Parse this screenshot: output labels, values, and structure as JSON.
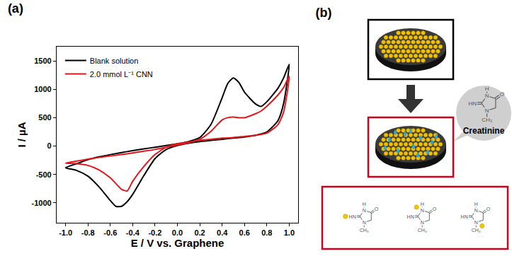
{
  "chart_data": {
    "type": "line",
    "title": "(a)",
    "x_label": "E / V vs. Graphene",
    "y_label": "I / µA",
    "x": [
      -1.0,
      -0.9,
      -0.8,
      -0.7,
      -0.6,
      -0.5,
      -0.4,
      -0.3,
      -0.2,
      -0.1,
      0.0,
      0.1,
      0.2,
      0.3,
      0.4,
      0.45,
      0.5,
      0.55,
      0.6,
      0.7,
      0.75,
      0.8,
      0.9,
      0.95,
      1.0,
      0.95,
      0.9,
      0.8,
      0.7,
      0.6,
      0.5,
      0.4,
      0.3,
      0.2,
      0.1,
      0.0,
      -0.1,
      -0.2,
      -0.3,
      -0.4,
      -0.45,
      -0.5,
      -0.55,
      -0.6,
      -0.7,
      -0.8,
      -0.9,
      -1.0
    ],
    "series": [
      {
        "name": "Blank solution",
        "color": "#000000",
        "values": [
          -380,
          -310,
          -240,
          -190,
          -150,
          -115,
          -80,
          -50,
          -20,
          10,
          40,
          80,
          150,
          380,
          850,
          1100,
          1200,
          1120,
          950,
          740,
          700,
          780,
          1020,
          1200,
          1440,
          750,
          450,
          250,
          190,
          160,
          140,
          120,
          100,
          80,
          50,
          10,
          -60,
          -220,
          -520,
          -850,
          -980,
          -1060,
          -1060,
          -960,
          -720,
          -530,
          -430,
          -380
        ]
      },
      {
        "name": "2.0 mmol L⁻¹ CNN",
        "color": "#e8141a",
        "values": [
          -300,
          -265,
          -230,
          -200,
          -175,
          -150,
          -120,
          -90,
          -60,
          -20,
          20,
          60,
          120,
          260,
          460,
          500,
          510,
          500,
          500,
          570,
          620,
          700,
          900,
          1030,
          1230,
          600,
          380,
          230,
          190,
          170,
          150,
          140,
          120,
          100,
          70,
          40,
          -20,
          -150,
          -360,
          -620,
          -790,
          -760,
          -660,
          -560,
          -420,
          -340,
          -310,
          -300
        ]
      }
    ],
    "xlim": [
      -1.08,
      1.08
    ],
    "xticks": [
      {
        "value": -1.0,
        "label": "-1.0"
      },
      -0.8,
      -0.6,
      -0.4,
      -0.2,
      {
        "value": 0,
        "label": "0.0"
      },
      0.2,
      0.4,
      0.6,
      0.8,
      {
        "value": 1.0,
        "label": "1.0"
      }
    ],
    "ylim": [
      -1350,
      1750
    ],
    "yticks": [
      -1000,
      -500,
      0,
      500,
      1000,
      1500
    ],
    "grid": false,
    "legend": "upper left"
  },
  "diagram": {
    "panel_label": "(b)",
    "callout": "Creatinine",
    "atoms": {
      "ring_nh": "N",
      "h": "H",
      "o": "O",
      "imine": "HN",
      "ring_n": "N",
      "methyl": "CH₃"
    }
  }
}
